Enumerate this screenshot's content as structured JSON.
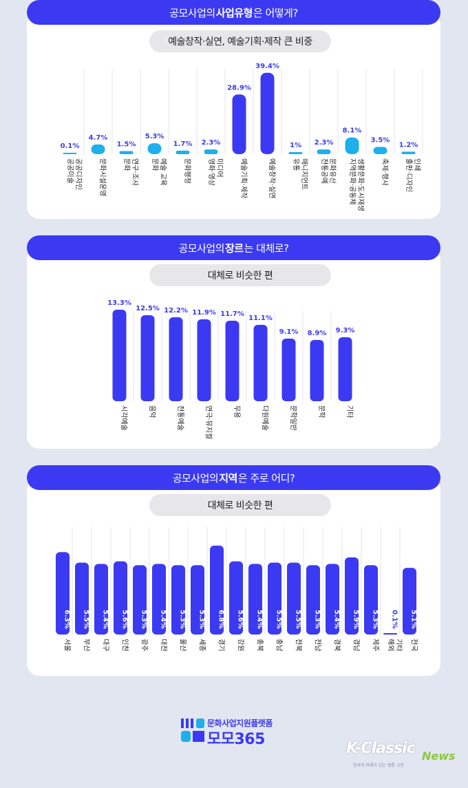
{
  "panels": [
    {
      "title_pre": "공모사업의 ",
      "title_bold": "사업유형",
      "title_post": "은 어떻게?",
      "subtitle": "예술창작·실연, 예술기획·제작 큰 비중"
    },
    {
      "title_pre": "공모사업의 ",
      "title_bold": "장르",
      "title_post": "는 대체로?",
      "subtitle": "대체로 비슷한 편"
    },
    {
      "title_pre": "공모사업의 ",
      "title_bold": "지역",
      "title_post": "은 주로 어디?",
      "subtitle": "대체로 비슷한 편"
    }
  ],
  "chart_data": [
    {
      "type": "bar",
      "unit": "%",
      "categories": [
        "공공미술\n공공디자인",
        "문화시설운영",
        "문화\n연구·조사",
        "문화\n예술 교육",
        "문화행정",
        "영화·영상\n미디어",
        "예술기획·제작",
        "예술창작·실연",
        "유통\n매니지먼트",
        "전통공예\n문화유산",
        "지역문화·공동체\n생활문화·도시재생",
        "축제·행사",
        "출판·디자인\n인쇄"
      ],
      "values": [
        0.1,
        4.7,
        1.5,
        5.3,
        1.7,
        2.3,
        28.9,
        39.4,
        1.0,
        2.3,
        8.1,
        3.5,
        1.2
      ],
      "value_labels": [
        "0.1%",
        "4.7%",
        "1.5%",
        "5.3%",
        "1.7%",
        "2.3%",
        "28.9%",
        "39.4%",
        "1%",
        "2.3%",
        "8.1%",
        "3.5%",
        "1.2%"
      ],
      "highlighted": [
        6,
        7
      ],
      "colors": {
        "normal": "#1db0ec",
        "highlight": "#3b3af2",
        "label": "#3b3af2"
      }
    },
    {
      "type": "bar",
      "unit": "%",
      "categories": [
        "시각예술",
        "음악",
        "전통예술",
        "연극·뮤지컬",
        "무용",
        "다원예술",
        "문학일반",
        "문학",
        "기타"
      ],
      "values": [
        13.3,
        12.5,
        12.2,
        11.9,
        11.7,
        11.1,
        9.1,
        8.9,
        9.3
      ],
      "value_labels": [
        "13.3%",
        "12.5%",
        "12.2%",
        "11.9%",
        "11.7%",
        "11.1%",
        "9.1%",
        "8.9%",
        "9.3%"
      ],
      "colors": {
        "bar": "#3b3af2",
        "label": "#3b3af2"
      }
    },
    {
      "type": "bar",
      "unit": "%",
      "categories": [
        "서울",
        "부산",
        "대구",
        "인천",
        "광주",
        "대전",
        "울산",
        "세종",
        "경기",
        "강원",
        "충북",
        "충남",
        "전북",
        "전남",
        "경북",
        "경남",
        "제주",
        "해외\n기타",
        "전국"
      ],
      "values": [
        6.3,
        5.5,
        5.4,
        5.6,
        5.3,
        5.4,
        5.3,
        5.3,
        6.8,
        5.6,
        5.4,
        5.5,
        5.5,
        5.3,
        5.4,
        5.9,
        5.3,
        0.1,
        5.1
      ],
      "value_labels": [
        "6.3%",
        "5.5%",
        "5.4%",
        "5.6%",
        "5.3%",
        "5.4%",
        "5.3%",
        "5.3%",
        "6.8%",
        "5.6%",
        "5.4%",
        "5.5%",
        "5.5%",
        "5.3%",
        "5.4%",
        "5.9%",
        "5.3%",
        "0.1%",
        "5.1%"
      ],
      "colors": {
        "bar": "#3b3af2",
        "inner_label": "#ffffff",
        "outer_label": "#3b3af2"
      }
    }
  ],
  "logo": {
    "tagline": "문화사업지원플랫폼",
    "name": "모모365",
    "colors": {
      "brand": "#3b3af2"
    }
  },
  "watermark": {
    "brand_a": "K-Classic",
    "brand_b": "News",
    "note": "한국의 미래가 있는 정통 고전"
  }
}
